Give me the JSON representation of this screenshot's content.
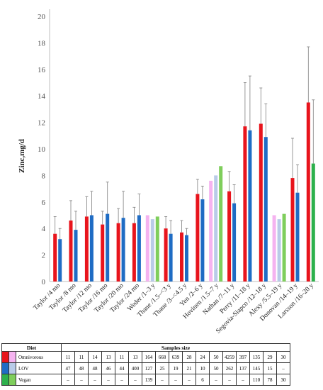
{
  "chart_data": {
    "type": "bar",
    "title": "",
    "xlabel": "",
    "ylabel": "Zinc,mg/d",
    "ylim": [
      0,
      20
    ],
    "yticks": [
      0,
      2,
      4,
      6,
      8,
      10,
      12,
      14,
      16,
      18,
      20
    ],
    "grid": false,
    "categories": [
      "Taylor /4 mo",
      "Taylor /8 mo",
      "Taylor /12 mo",
      "Taylor /16 mo",
      "Taylor /20 mo",
      "Taylor /24 mo",
      "Weder /1–3 y",
      "Thane /1.5–<3 y",
      "Thane /3–<4.5 y",
      "Yen /2–6 y",
      "Hovinen /1.5–7 y",
      "Nathan /7–11 y",
      "Perry /11–18 y",
      "Segovia-Siapco /12–18 y",
      "Alexy /5.5–19 y",
      "Donovan /14–19 y",
      "Larsson /16–20 y"
    ],
    "series": [
      {
        "name": "Omnivorous",
        "color_red": "#e8141c",
        "color_pink": "#f5b3f0",
        "values": [
          3.6,
          4.6,
          4.9,
          4.3,
          4.4,
          4.4,
          5.0,
          4.0,
          3.7,
          6.6,
          7.6,
          6.8,
          11.7,
          11.9,
          5.0,
          7.8,
          13.5
        ],
        "errors": [
          1.3,
          1.5,
          1.5,
          1.0,
          1.1,
          1.2,
          null,
          0.9,
          0.9,
          1.1,
          null,
          1.5,
          3.3,
          2.7,
          null,
          3.0,
          4.2
        ]
      },
      {
        "name": "LOV",
        "color_blue": "#1f6cc4",
        "color_lightblue": "#b9cbe8",
        "values": [
          3.2,
          3.9,
          5.0,
          5.1,
          4.8,
          5.0,
          4.7,
          3.6,
          3.5,
          6.2,
          8.0,
          5.9,
          11.4,
          10.9,
          4.7,
          6.7,
          null
        ],
        "errors": [
          0.8,
          1.4,
          1.8,
          2.4,
          2.0,
          1.6,
          null,
          1.0,
          0.5,
          1.0,
          null,
          1.4,
          4.1,
          2.5,
          null,
          2.1,
          null
        ]
      },
      {
        "name": "Vegan",
        "color_green": "#2db04c",
        "color_lightgreen": "#7fce5c",
        "values": [
          null,
          null,
          null,
          null,
          null,
          null,
          4.9,
          null,
          null,
          null,
          8.7,
          null,
          null,
          null,
          5.1,
          null,
          8.9
        ],
        "errors": [
          null,
          null,
          null,
          null,
          null,
          null,
          null,
          null,
          null,
          null,
          null,
          null,
          null,
          null,
          null,
          null,
          4.8
        ]
      }
    ],
    "light_groups": [
      6,
      10,
      14
    ]
  },
  "table": {
    "header_diet": "Diet",
    "header_samples": "Samples size",
    "rows": [
      {
        "label": "Omnivorous",
        "c1": "#e8141c",
        "c2": "#f5b3f0",
        "values": [
          "11",
          "11",
          "14",
          "13",
          "11",
          "13",
          "164",
          "668",
          "639",
          "28",
          "24",
          "50",
          "4259",
          "397",
          "135",
          "29",
          "30"
        ]
      },
      {
        "label": "LOV",
        "c1": "#1f6cc4",
        "c2": "#b9cbe8",
        "values": [
          "47",
          "48",
          "48",
          "46",
          "44",
          "400",
          "127",
          "25",
          "19",
          "21",
          "10",
          "50",
          "262",
          "137",
          "145",
          "15",
          "–"
        ]
      },
      {
        "label": "Vegan",
        "c1": "#2db04c",
        "c2": "#7fce5c",
        "values": [
          "–",
          "–",
          "–",
          "–",
          "–",
          "–",
          "139",
          "–",
          "–",
          "–",
          "6",
          "–",
          "–",
          "–",
          "110",
          "78",
          "30"
        ]
      }
    ]
  }
}
